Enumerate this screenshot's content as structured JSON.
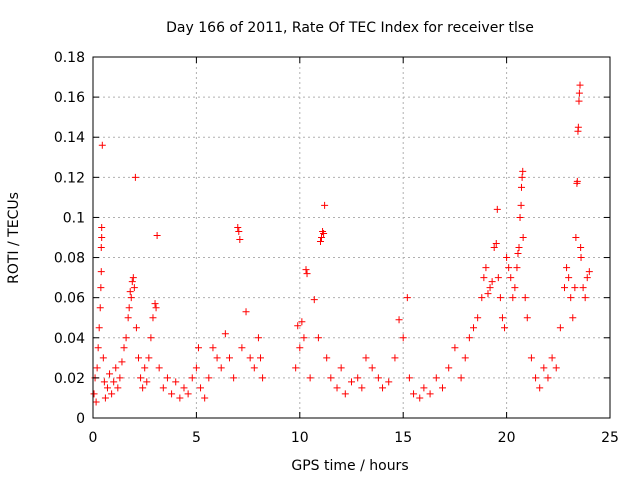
{
  "chart_data": {
    "type": "scatter",
    "title": "Day 166 of 2011, Rate Of TEC Index for receiver tlse",
    "xlabel": "GPS time / hours",
    "ylabel": "ROTI / TECUs",
    "xlim": [
      0,
      25
    ],
    "ylim": [
      0,
      0.18
    ],
    "xticks": [
      0,
      5,
      10,
      15,
      20,
      25
    ],
    "yticks": [
      0,
      0.02,
      0.04,
      0.06,
      0.08,
      0.1,
      0.12,
      0.14,
      0.16,
      0.18
    ],
    "xtick_labels": [
      "0",
      "5",
      "10",
      "15",
      "20",
      "25"
    ],
    "ytick_labels": [
      "0",
      "0.02",
      "0.04",
      "0.06",
      "0.08",
      "0.1",
      "0.12",
      "0.14",
      "0.16",
      "0.18"
    ],
    "grid": true,
    "marker": "+",
    "marker_color": "#ff0000",
    "series": [
      {
        "points": [
          [
            0.05,
            0.012
          ],
          [
            0.1,
            0.02
          ],
          [
            0.15,
            0.008
          ],
          [
            0.2,
            0.025
          ],
          [
            0.25,
            0.035
          ],
          [
            0.3,
            0.045
          ],
          [
            0.35,
            0.055
          ],
          [
            0.38,
            0.065
          ],
          [
            0.4,
            0.073
          ],
          [
            0.4,
            0.085
          ],
          [
            0.42,
            0.09
          ],
          [
            0.42,
            0.095
          ],
          [
            0.45,
            0.136
          ],
          [
            0.5,
            0.03
          ],
          [
            0.55,
            0.018
          ],
          [
            0.6,
            0.01
          ],
          [
            0.7,
            0.015
          ],
          [
            0.8,
            0.022
          ],
          [
            0.9,
            0.012
          ],
          [
            1.0,
            0.018
          ],
          [
            1.1,
            0.025
          ],
          [
            1.2,
            0.015
          ],
          [
            1.3,
            0.02
          ],
          [
            1.4,
            0.028
          ],
          [
            1.5,
            0.035
          ],
          [
            1.6,
            0.04
          ],
          [
            1.7,
            0.05
          ],
          [
            1.75,
            0.055
          ],
          [
            1.8,
            0.063
          ],
          [
            1.85,
            0.06
          ],
          [
            1.9,
            0.068
          ],
          [
            1.95,
            0.07
          ],
          [
            2.0,
            0.065
          ],
          [
            2.05,
            0.12
          ],
          [
            2.1,
            0.045
          ],
          [
            2.2,
            0.03
          ],
          [
            2.3,
            0.02
          ],
          [
            2.4,
            0.015
          ],
          [
            2.5,
            0.025
          ],
          [
            2.6,
            0.018
          ],
          [
            2.7,
            0.03
          ],
          [
            2.8,
            0.04
          ],
          [
            2.9,
            0.05
          ],
          [
            3.0,
            0.057
          ],
          [
            3.05,
            0.055
          ],
          [
            3.1,
            0.091
          ],
          [
            3.2,
            0.025
          ],
          [
            3.4,
            0.015
          ],
          [
            3.6,
            0.02
          ],
          [
            3.8,
            0.012
          ],
          [
            4.0,
            0.018
          ],
          [
            4.2,
            0.01
          ],
          [
            4.4,
            0.015
          ],
          [
            4.6,
            0.012
          ],
          [
            4.8,
            0.02
          ],
          [
            5.0,
            0.025
          ],
          [
            5.1,
            0.035
          ],
          [
            5.2,
            0.015
          ],
          [
            5.4,
            0.01
          ],
          [
            5.6,
            0.02
          ],
          [
            5.8,
            0.035
          ],
          [
            6.0,
            0.03
          ],
          [
            6.2,
            0.025
          ],
          [
            6.4,
            0.042
          ],
          [
            6.6,
            0.03
          ],
          [
            6.8,
            0.02
          ],
          [
            7.0,
            0.095
          ],
          [
            7.05,
            0.093
          ],
          [
            7.1,
            0.089
          ],
          [
            7.2,
            0.035
          ],
          [
            7.4,
            0.053
          ],
          [
            7.6,
            0.03
          ],
          [
            7.8,
            0.025
          ],
          [
            8.0,
            0.04
          ],
          [
            8.1,
            0.03
          ],
          [
            8.2,
            0.02
          ],
          [
            9.8,
            0.025
          ],
          [
            9.9,
            0.046
          ],
          [
            10.0,
            0.035
          ],
          [
            10.1,
            0.048
          ],
          [
            10.2,
            0.04
          ],
          [
            10.3,
            0.074
          ],
          [
            10.35,
            0.072
          ],
          [
            10.5,
            0.02
          ],
          [
            10.7,
            0.059
          ],
          [
            10.9,
            0.04
          ],
          [
            11.0,
            0.088
          ],
          [
            11.05,
            0.09
          ],
          [
            11.1,
            0.093
          ],
          [
            11.15,
            0.092
          ],
          [
            11.2,
            0.106
          ],
          [
            11.3,
            0.03
          ],
          [
            11.5,
            0.02
          ],
          [
            11.8,
            0.015
          ],
          [
            12.0,
            0.025
          ],
          [
            12.2,
            0.012
          ],
          [
            12.5,
            0.018
          ],
          [
            12.8,
            0.02
          ],
          [
            13.0,
            0.015
          ],
          [
            13.2,
            0.03
          ],
          [
            13.5,
            0.025
          ],
          [
            13.8,
            0.02
          ],
          [
            14.0,
            0.015
          ],
          [
            14.3,
            0.018
          ],
          [
            14.6,
            0.03
          ],
          [
            14.8,
            0.049
          ],
          [
            15.0,
            0.04
          ],
          [
            15.2,
            0.06
          ],
          [
            15.3,
            0.02
          ],
          [
            15.5,
            0.012
          ],
          [
            15.8,
            0.01
          ],
          [
            16.0,
            0.015
          ],
          [
            16.3,
            0.012
          ],
          [
            16.6,
            0.02
          ],
          [
            16.9,
            0.015
          ],
          [
            17.2,
            0.025
          ],
          [
            17.5,
            0.035
          ],
          [
            17.8,
            0.02
          ],
          [
            18.0,
            0.03
          ],
          [
            18.2,
            0.04
          ],
          [
            18.4,
            0.045
          ],
          [
            18.6,
            0.05
          ],
          [
            18.8,
            0.06
          ],
          [
            18.9,
            0.07
          ],
          [
            19.0,
            0.075
          ],
          [
            19.1,
            0.062
          ],
          [
            19.2,
            0.065
          ],
          [
            19.3,
            0.068
          ],
          [
            19.4,
            0.085
          ],
          [
            19.5,
            0.087
          ],
          [
            19.55,
            0.104
          ],
          [
            19.6,
            0.07
          ],
          [
            19.7,
            0.06
          ],
          [
            19.8,
            0.05
          ],
          [
            19.9,
            0.045
          ],
          [
            20.0,
            0.08
          ],
          [
            20.1,
            0.075
          ],
          [
            20.2,
            0.07
          ],
          [
            20.3,
            0.06
          ],
          [
            20.4,
            0.065
          ],
          [
            20.5,
            0.075
          ],
          [
            20.55,
            0.082
          ],
          [
            20.6,
            0.085
          ],
          [
            20.65,
            0.1
          ],
          [
            20.7,
            0.106
          ],
          [
            20.72,
            0.115
          ],
          [
            20.75,
            0.12
          ],
          [
            20.78,
            0.123
          ],
          [
            20.8,
            0.09
          ],
          [
            20.9,
            0.06
          ],
          [
            21.0,
            0.05
          ],
          [
            21.2,
            0.03
          ],
          [
            21.4,
            0.02
          ],
          [
            21.6,
            0.015
          ],
          [
            21.8,
            0.025
          ],
          [
            22.0,
            0.02
          ],
          [
            22.2,
            0.03
          ],
          [
            22.4,
            0.025
          ],
          [
            22.6,
            0.045
          ],
          [
            22.8,
            0.065
          ],
          [
            22.9,
            0.075
          ],
          [
            23.0,
            0.07
          ],
          [
            23.1,
            0.06
          ],
          [
            23.2,
            0.05
          ],
          [
            23.3,
            0.065
          ],
          [
            23.35,
            0.09
          ],
          [
            23.4,
            0.117
          ],
          [
            23.42,
            0.118
          ],
          [
            23.45,
            0.143
          ],
          [
            23.47,
            0.145
          ],
          [
            23.5,
            0.158
          ],
          [
            23.52,
            0.162
          ],
          [
            23.55,
            0.166
          ],
          [
            23.58,
            0.085
          ],
          [
            23.6,
            0.08
          ],
          [
            23.7,
            0.065
          ],
          [
            23.8,
            0.06
          ],
          [
            23.9,
            0.07
          ],
          [
            24.0,
            0.073
          ]
        ]
      }
    ]
  }
}
